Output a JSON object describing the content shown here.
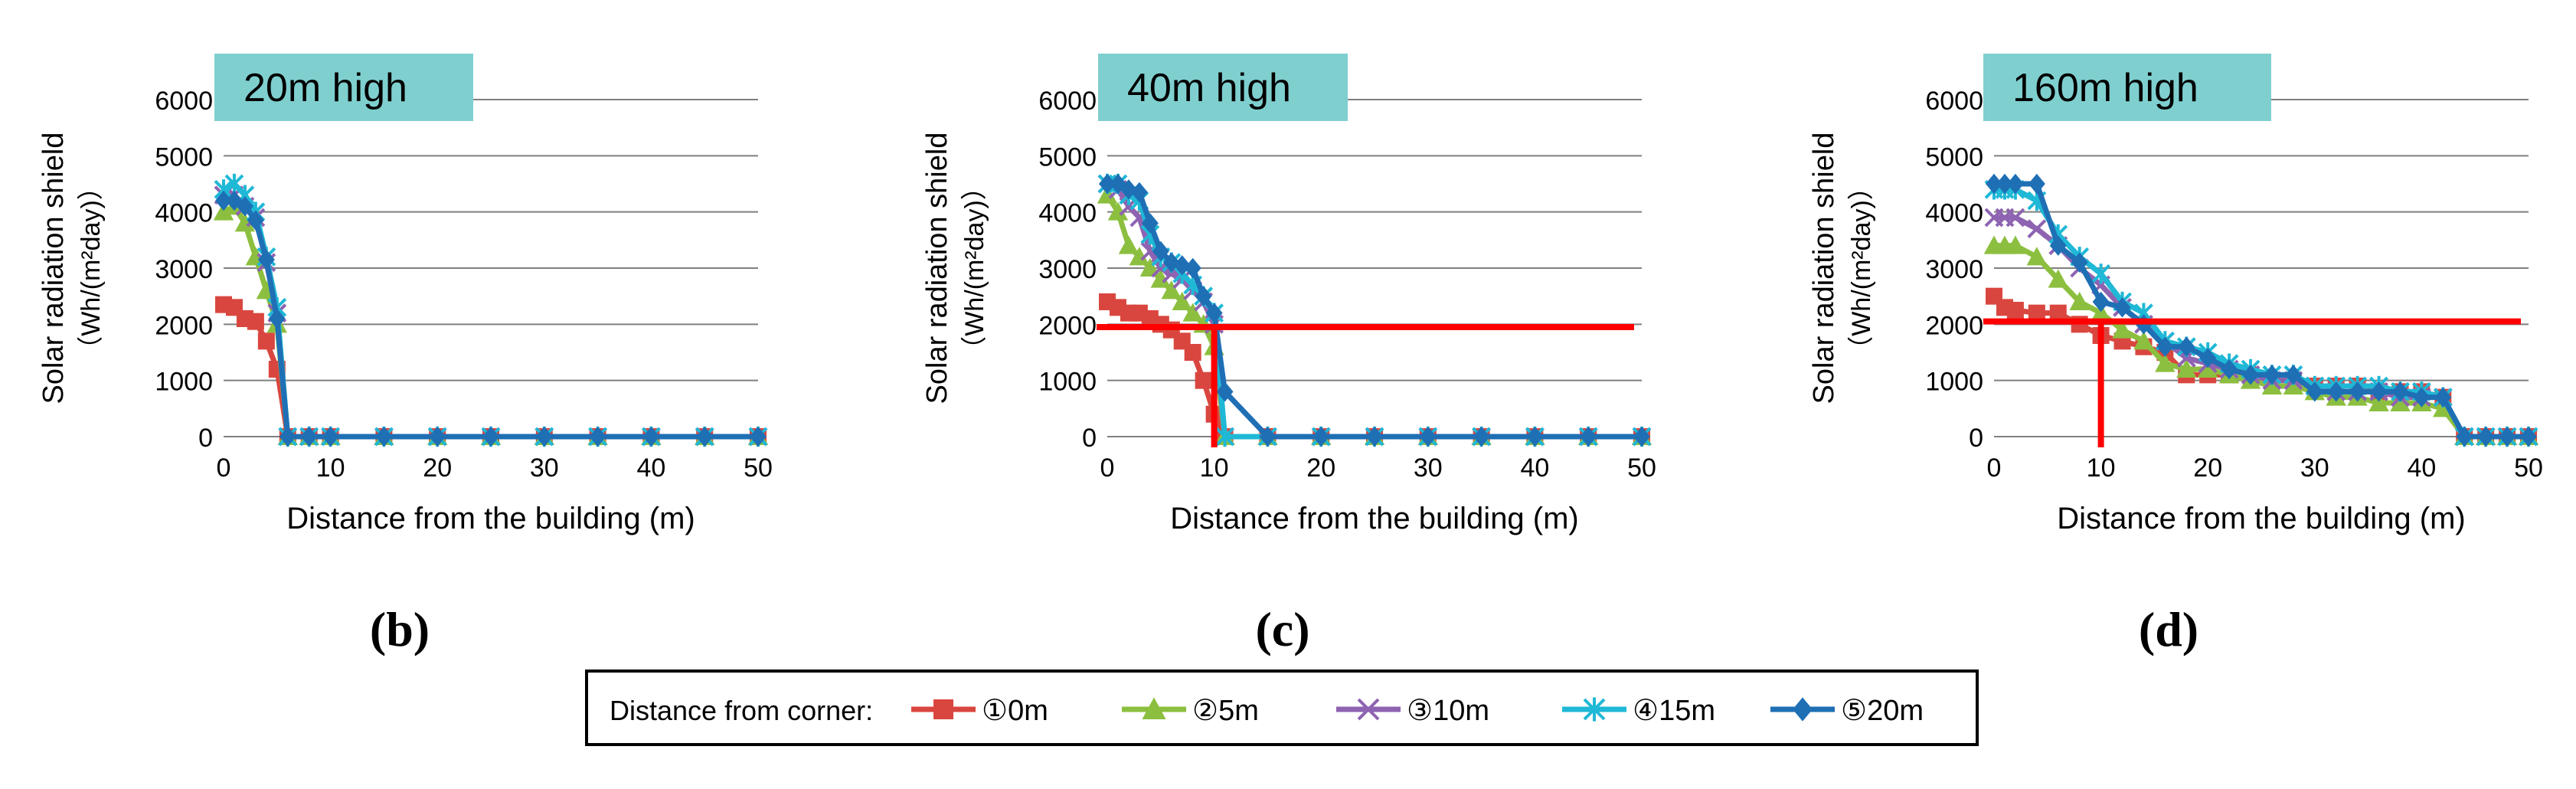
{
  "panels": [
    {
      "letter": "(b)"
    },
    {
      "letter": "(c)"
    },
    {
      "letter": "(d)"
    }
  ],
  "colors": {
    "series": [
      "#d9463f",
      "#8cbf3f",
      "#8e63b1",
      "#1fb8d6",
      "#1f6fb5"
    ],
    "threshold": "#ff0000",
    "title_box": "#7fcfcf",
    "grid": "#7f7f7f"
  },
  "legend": {
    "title": "Distance from corner:",
    "entries": [
      {
        "label": "①0m",
        "marker": "square"
      },
      {
        "label": "②5m",
        "marker": "triangle"
      },
      {
        "label": "③10m",
        "marker": "x"
      },
      {
        "label": "④15m",
        "marker": "star"
      },
      {
        "label": "⑤20m",
        "marker": "diamond"
      }
    ]
  },
  "chart_data": [
    {
      "type": "line",
      "title": "20m high",
      "xlabel": "Distance from the building (m)",
      "ylabel_line1": "Solar radiation shield",
      "ylabel_line2": "（Wh/(m²day)）",
      "xlim": [
        0,
        50
      ],
      "ylim": [
        0,
        6000
      ],
      "xticks": [
        0,
        10,
        20,
        30,
        40,
        50
      ],
      "yticks": [
        0,
        1000,
        2000,
        3000,
        4000,
        5000,
        6000
      ],
      "threshold": null,
      "series": [
        {
          "name": "①0m",
          "x": [
            0,
            1,
            2,
            3,
            4,
            5,
            6,
            8,
            10,
            15,
            20,
            25,
            30,
            35,
            40,
            45,
            50
          ],
          "y": [
            2350,
            2300,
            2100,
            2050,
            1700,
            1200,
            0,
            0,
            0,
            0,
            0,
            0,
            0,
            0,
            0,
            0,
            0
          ]
        },
        {
          "name": "②5m",
          "x": [
            0,
            1,
            2,
            3,
            4,
            5,
            6,
            8,
            10,
            15,
            20,
            25,
            30,
            35,
            40,
            45,
            50
          ],
          "y": [
            4000,
            4100,
            3800,
            3200,
            2600,
            2000,
            0,
            0,
            0,
            0,
            0,
            0,
            0,
            0,
            0,
            0,
            0
          ]
        },
        {
          "name": "③10m",
          "x": [
            0,
            1,
            2,
            3,
            4,
            5,
            6,
            8,
            10,
            15,
            20,
            25,
            30,
            35,
            40,
            45,
            50
          ],
          "y": [
            4300,
            4300,
            4100,
            3900,
            3100,
            2200,
            0,
            0,
            0,
            0,
            0,
            0,
            0,
            0,
            0,
            0,
            0
          ]
        },
        {
          "name": "④15m",
          "x": [
            0,
            1,
            2,
            3,
            4,
            5,
            6,
            8,
            10,
            15,
            20,
            25,
            30,
            35,
            40,
            45,
            50
          ],
          "y": [
            4400,
            4500,
            4300,
            4000,
            3200,
            2300,
            0,
            0,
            0,
            0,
            0,
            0,
            0,
            0,
            0,
            0,
            0
          ]
        },
        {
          "name": "⑤20m",
          "x": [
            0,
            1,
            2,
            3,
            4,
            5,
            6,
            8,
            10,
            15,
            20,
            25,
            30,
            35,
            40,
            45,
            50
          ],
          "y": [
            4200,
            4200,
            4100,
            3850,
            3150,
            2100,
            0,
            0,
            0,
            0,
            0,
            0,
            0,
            0,
            0,
            0,
            0
          ]
        }
      ]
    },
    {
      "type": "line",
      "title": "40m high",
      "xlabel": "Distance from the building (m)",
      "ylabel_line1": "Solar radiation shield",
      "ylabel_line2": "（Wh/(m²day)）",
      "xlim": [
        0,
        50
      ],
      "ylim": [
        0,
        6000
      ],
      "xticks": [
        0,
        10,
        20,
        30,
        40,
        50
      ],
      "yticks": [
        0,
        1000,
        2000,
        3000,
        4000,
        5000,
        6000
      ],
      "threshold": {
        "y": 1950,
        "x": 10
      },
      "series": [
        {
          "name": "①0m",
          "x": [
            0,
            1,
            2,
            3,
            4,
            5,
            6,
            7,
            8,
            9,
            10,
            11,
            15,
            20,
            25,
            30,
            35,
            40,
            45,
            50
          ],
          "y": [
            2400,
            2300,
            2200,
            2200,
            2100,
            2000,
            1900,
            1700,
            1500,
            1000,
            400,
            0,
            0,
            0,
            0,
            0,
            0,
            0,
            0,
            0
          ]
        },
        {
          "name": "②5m",
          "x": [
            0,
            1,
            2,
            3,
            4,
            5,
            6,
            7,
            8,
            9,
            10,
            11,
            15,
            20,
            25,
            30,
            35,
            40,
            45,
            50
          ],
          "y": [
            4300,
            4000,
            3400,
            3200,
            3000,
            2800,
            2600,
            2400,
            2200,
            2000,
            1600,
            0,
            0,
            0,
            0,
            0,
            0,
            0,
            0,
            0
          ]
        },
        {
          "name": "③10m",
          "x": [
            0,
            1,
            2,
            3,
            4,
            5,
            6,
            7,
            8,
            9,
            10,
            11,
            15,
            20,
            25,
            30,
            35,
            40,
            45,
            50
          ],
          "y": [
            4500,
            4400,
            4100,
            3900,
            3300,
            3000,
            2900,
            2800,
            2600,
            2400,
            2000,
            0,
            0,
            0,
            0,
            0,
            0,
            0,
            0,
            0
          ]
        },
        {
          "name": "④15m",
          "x": [
            0,
            1,
            2,
            3,
            4,
            5,
            6,
            7,
            8,
            9,
            10,
            11,
            15,
            20,
            25,
            30,
            35,
            40,
            45,
            50
          ],
          "y": [
            4500,
            4500,
            4300,
            4200,
            3600,
            3200,
            3100,
            2900,
            2700,
            2500,
            2200,
            0,
            0,
            0,
            0,
            0,
            0,
            0,
            0,
            0
          ]
        },
        {
          "name": "⑤20m",
          "x": [
            0,
            1,
            2,
            3,
            4,
            5,
            6,
            7,
            8,
            9,
            10,
            11,
            15,
            20,
            25,
            30,
            35,
            40,
            45,
            50
          ],
          "y": [
            4500,
            4500,
            4400,
            4350,
            3800,
            3300,
            3100,
            3050,
            3000,
            2500,
            2200,
            800,
            0,
            0,
            0,
            0,
            0,
            0,
            0,
            0
          ]
        }
      ]
    },
    {
      "type": "line",
      "title": "160m high",
      "xlabel": "Distance from the building (m)",
      "ylabel_line1": "Solar radiation shield",
      "ylabel_line2": "（Wh/(m²day)）",
      "xlim": [
        0,
        50
      ],
      "ylim": [
        0,
        6000
      ],
      "xticks": [
        0,
        10,
        20,
        30,
        40,
        50
      ],
      "yticks": [
        0,
        1000,
        2000,
        3000,
        4000,
        5000,
        6000
      ],
      "threshold": {
        "y": 2050,
        "x": 10
      },
      "series": [
        {
          "name": "①0m",
          "x": [
            0,
            1,
            2,
            4,
            6,
            8,
            10,
            12,
            14,
            16,
            18,
            20,
            22,
            24,
            26,
            28,
            30,
            32,
            34,
            36,
            38,
            40,
            42,
            44,
            46,
            48,
            50
          ],
          "y": [
            2500,
            2300,
            2250,
            2200,
            2200,
            2000,
            1800,
            1700,
            1600,
            1500,
            1100,
            1100,
            1100,
            1100,
            1000,
            1000,
            900,
            900,
            900,
            800,
            800,
            800,
            700,
            0,
            0,
            0,
            0
          ]
        },
        {
          "name": "②5m",
          "x": [
            0,
            1,
            2,
            4,
            6,
            8,
            10,
            12,
            14,
            16,
            18,
            20,
            22,
            24,
            26,
            28,
            30,
            32,
            34,
            36,
            38,
            40,
            42,
            44,
            46,
            48,
            50
          ],
          "y": [
            3400,
            3400,
            3400,
            3200,
            2800,
            2400,
            2200,
            1900,
            1700,
            1300,
            1200,
            1200,
            1100,
            1000,
            900,
            900,
            800,
            700,
            700,
            600,
            600,
            600,
            500,
            0,
            0,
            0,
            0
          ]
        },
        {
          "name": "③10m",
          "x": [
            0,
            1,
            2,
            4,
            6,
            8,
            10,
            12,
            14,
            16,
            18,
            20,
            22,
            24,
            26,
            28,
            30,
            32,
            34,
            36,
            38,
            40,
            42,
            44,
            46,
            48,
            50
          ],
          "y": [
            3900,
            3900,
            3900,
            3700,
            3400,
            3000,
            2700,
            2300,
            2000,
            1700,
            1400,
            1300,
            1200,
            1100,
            1000,
            1000,
            900,
            800,
            800,
            800,
            700,
            700,
            700,
            0,
            0,
            0,
            0
          ]
        },
        {
          "name": "④15m",
          "x": [
            0,
            1,
            2,
            4,
            6,
            8,
            10,
            12,
            14,
            16,
            18,
            20,
            22,
            24,
            26,
            28,
            30,
            32,
            34,
            36,
            38,
            40,
            42,
            44,
            46,
            48,
            50
          ],
          "y": [
            4400,
            4400,
            4400,
            4200,
            3600,
            3200,
            2900,
            2400,
            2200,
            1700,
            1600,
            1500,
            1300,
            1200,
            1100,
            1100,
            900,
            900,
            900,
            900,
            800,
            800,
            700,
            0,
            0,
            0,
            0
          ]
        },
        {
          "name": "⑤20m",
          "x": [
            0,
            1,
            2,
            4,
            6,
            8,
            10,
            12,
            14,
            16,
            18,
            20,
            22,
            24,
            26,
            28,
            30,
            32,
            34,
            36,
            38,
            40,
            42,
            44,
            46,
            48,
            50
          ],
          "y": [
            4500,
            4500,
            4500,
            4500,
            3400,
            3100,
            2400,
            2300,
            2000,
            1600,
            1600,
            1400,
            1200,
            1100,
            1100,
            1100,
            800,
            800,
            800,
            800,
            800,
            700,
            700,
            0,
            0,
            0,
            0
          ]
        }
      ]
    }
  ]
}
